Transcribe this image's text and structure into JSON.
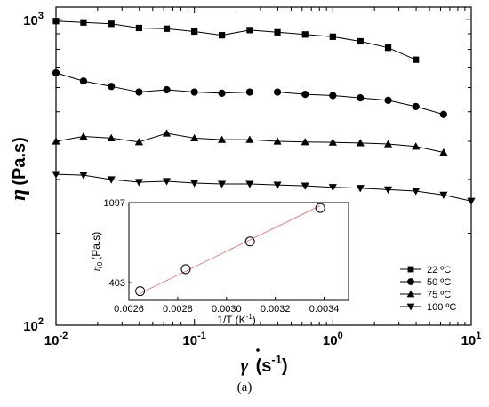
{
  "caption": "(a)",
  "chart_data": [
    {
      "type": "line",
      "xscale": "log",
      "yscale": "log",
      "xlim": [
        0.01,
        10
      ],
      "ylim": [
        100,
        1100
      ],
      "xlabel": "γ̇ (s⁻¹)",
      "ylabel": "η (Pa.s)",
      "xticks": [
        {
          "value": 0.01,
          "base": "10",
          "exp": "-2"
        },
        {
          "value": 0.1,
          "base": "10",
          "exp": "-1"
        },
        {
          "value": 1,
          "base": "10",
          "exp": "0"
        },
        {
          "value": 10,
          "base": "10",
          "exp": "1"
        }
      ],
      "yticks": [
        {
          "value": 100,
          "base": "10",
          "exp": "2"
        },
        {
          "value": 1000,
          "base": "10",
          "exp": "3"
        }
      ],
      "legend_position": "bottom-right",
      "series": [
        {
          "name": "22 ºC",
          "marker": "square",
          "x": [
            0.01,
            0.0158,
            0.0251,
            0.0398,
            0.0631,
            0.1,
            0.158,
            0.251,
            0.398,
            0.631,
            1.0,
            1.58,
            2.51,
            3.98
          ],
          "y": [
            990,
            980,
            970,
            940,
            935,
            915,
            890,
            925,
            910,
            895,
            880,
            850,
            810,
            740
          ]
        },
        {
          "name": "50 ºC",
          "marker": "circle",
          "x": [
            0.01,
            0.0158,
            0.0251,
            0.0398,
            0.0631,
            0.1,
            0.158,
            0.251,
            0.398,
            0.631,
            1.0,
            1.58,
            2.51,
            3.98,
            6.31
          ],
          "y": [
            670,
            630,
            605,
            580,
            590,
            580,
            575,
            580,
            580,
            570,
            565,
            555,
            545,
            520,
            490
          ]
        },
        {
          "name": "75 ºC",
          "marker": "triangle-up",
          "x": [
            0.01,
            0.0158,
            0.0251,
            0.0398,
            0.0631,
            0.1,
            0.158,
            0.251,
            0.398,
            0.631,
            1.0,
            1.58,
            2.51,
            3.98,
            6.31
          ],
          "y": [
            400,
            415,
            410,
            398,
            425,
            410,
            405,
            405,
            400,
            398,
            397,
            395,
            392,
            385,
            368
          ]
        },
        {
          "name": "100 ºC",
          "marker": "triangle-down",
          "x": [
            0.01,
            0.0158,
            0.0251,
            0.0398,
            0.0631,
            0.1,
            0.158,
            0.251,
            0.398,
            0.631,
            1.0,
            1.58,
            2.51,
            3.98,
            6.31,
            10
          ],
          "y": [
            312,
            310,
            300,
            294,
            296,
            292,
            290,
            290,
            288,
            286,
            283,
            281,
            278,
            275,
            267,
            255
          ]
        }
      ]
    },
    {
      "type": "scatter",
      "inset": true,
      "xlim": [
        0.0026,
        0.0035
      ],
      "ylim": [
        250,
        1097
      ],
      "xlabel": "1/T (K⁻¹)",
      "ylabel": "η₀ (Pa.s)",
      "xticks": [
        "0.0026",
        "0.0028",
        "0.0030",
        "0.0032",
        "0.0034"
      ],
      "yticks": [
        "403",
        "1097"
      ],
      "x": [
        0.002646,
        0.002833,
        0.003096,
        0.003384
      ],
      "y": [
        330,
        520,
        760,
        1050
      ],
      "fit_line": {
        "x": [
          0.002646,
          0.003384
        ],
        "y": [
          310,
          1070
        ],
        "color": "#e88080"
      }
    }
  ]
}
